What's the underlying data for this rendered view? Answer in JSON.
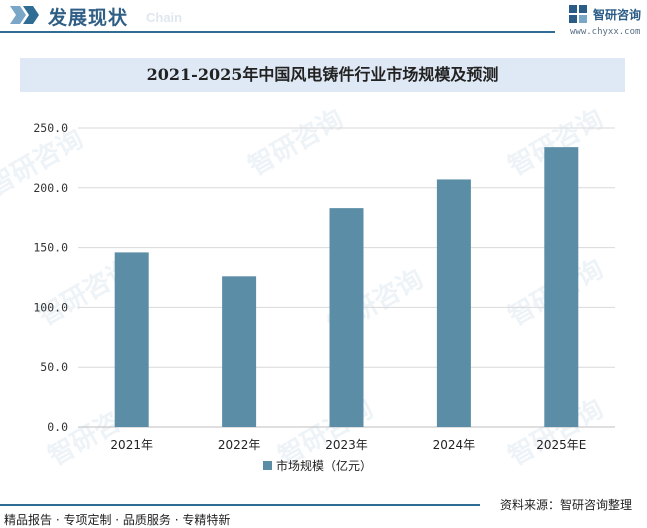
{
  "header": {
    "section_title": "发展现状",
    "section_title_en": "Chain",
    "brand_name": "智研咨询",
    "brand_url": "www.chyxx.com"
  },
  "watermark_text": "智研咨询",
  "chart_data": {
    "type": "bar",
    "title": "2021-2025年中国风电铸件行业市场规模及预测",
    "categories": [
      "2021年",
      "2022年",
      "2023年",
      "2024年",
      "2025年E"
    ],
    "series": [
      {
        "name": "市场规模（亿元）",
        "values": [
          146,
          126,
          183,
          207,
          234
        ]
      }
    ],
    "ylim": [
      0,
      250
    ],
    "yticks": [
      "0.0",
      "50.0",
      "100.0",
      "150.0",
      "200.0",
      "250.0"
    ],
    "ytick_values": [
      0,
      50,
      100,
      150,
      200,
      250
    ],
    "xlabel": "",
    "ylabel": "",
    "grid": true,
    "legend": "bottom-center",
    "bar_color": "#5b8ea6"
  },
  "footer": {
    "left": "精品报告 · 专项定制 · 品质服务 · 专精特新",
    "right": "资料来源：智研咨询整理"
  }
}
